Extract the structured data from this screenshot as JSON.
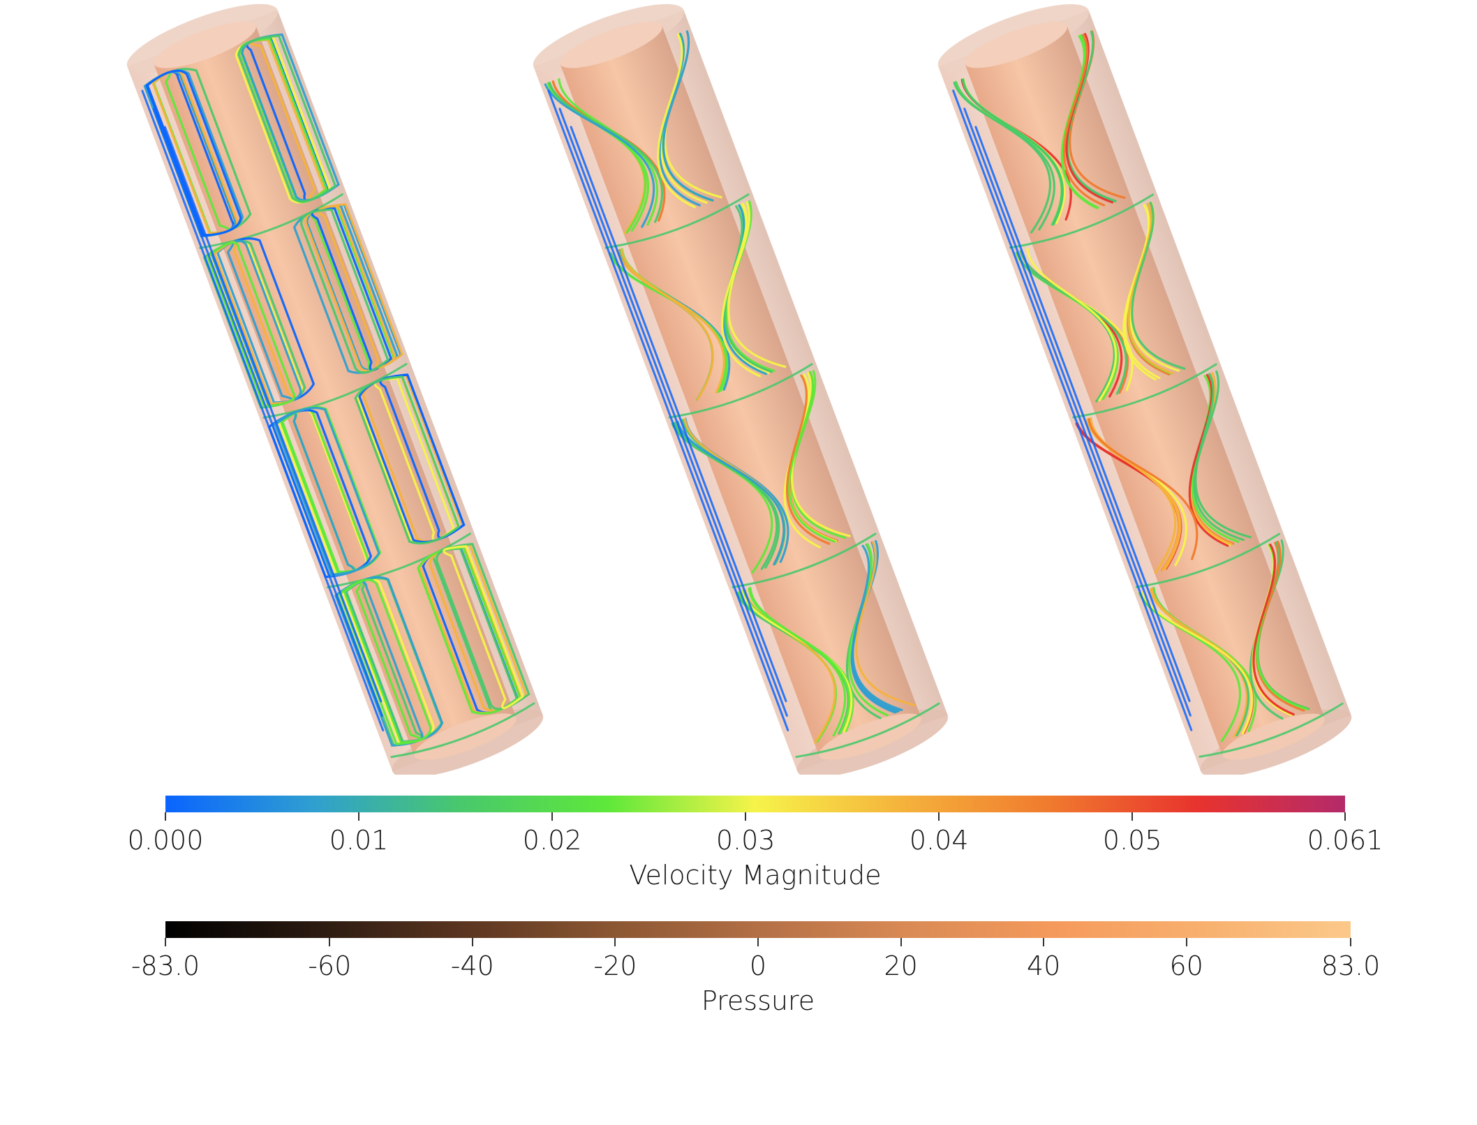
{
  "velocity_colorbar": {
    "title": "Velocity Magnitude",
    "ticks": [
      "0.000",
      "0.01",
      "0.02",
      "0.03",
      "0.04",
      "0.05",
      "0.061"
    ],
    "tick_values": [
      0.0,
      0.01,
      0.02,
      0.03,
      0.04,
      0.05,
      0.061
    ],
    "range": [
      0.0,
      0.061
    ],
    "colors": [
      "#0a64ff",
      "#2f9fd0",
      "#49c86c",
      "#5ee83a",
      "#f6f34a",
      "#f5b23c",
      "#f07a2e",
      "#e8332e",
      "#b42a6a"
    ]
  },
  "pressure_colorbar": {
    "title": "Pressure",
    "ticks": [
      "-83.0",
      "-60",
      "-40",
      "-20",
      "0",
      "20",
      "40",
      "60",
      "83.0"
    ],
    "tick_values": [
      -83.0,
      -60,
      -40,
      -20,
      0,
      20,
      40,
      60,
      83.0
    ],
    "range": [
      -83.0,
      83.0
    ],
    "colors": [
      "#000000",
      "#2a1a10",
      "#5a3520",
      "#8a5632",
      "#b36f45",
      "#d98a55",
      "#f59a5c",
      "#f8b06e",
      "#fbc98a"
    ]
  },
  "panels": [
    {
      "streamline_pattern": "axial-cells"
    },
    {
      "streamline_pattern": "helical-cells"
    },
    {
      "streamline_pattern": "helical-cells-strong"
    }
  ]
}
